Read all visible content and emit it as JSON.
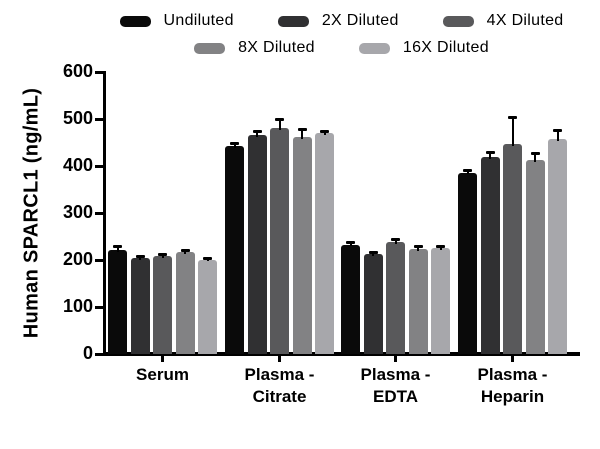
{
  "figure": {
    "ylabel": "Human SPARCL1 (ng/mL)"
  },
  "chart_data": {
    "type": "bar",
    "title": "",
    "xlabel": "",
    "ylabel": "Human SPARCL1 (ng/mL)",
    "ylim": [
      0,
      600
    ],
    "ytick_step": 100,
    "yticks": [
      0,
      100,
      200,
      300,
      400,
      500,
      600
    ],
    "grid": false,
    "legend_position": "top-center-two-rows",
    "legend_rows": [
      [
        0,
        1,
        2
      ],
      [
        3,
        4
      ]
    ],
    "error_bars": "upper, black, capped",
    "categories": [
      "Serum",
      "Plasma - Citrate",
      "Plasma - EDTA",
      "Plasma - Heparin"
    ],
    "categories_display": [
      [
        "Serum"
      ],
      [
        "Plasma -",
        "Citrate"
      ],
      [
        "Plasma -",
        "EDTA"
      ],
      [
        "Plasma -",
        "Heparin"
      ]
    ],
    "series": [
      {
        "name": "Undiluted",
        "color": "#0a0a0a",
        "values": [
          222,
          442,
          233,
          386
        ],
        "errors": [
          8,
          6,
          5,
          5
        ]
      },
      {
        "name": "2X Diluted",
        "color": "#303032",
        "values": [
          204,
          466,
          213,
          419
        ],
        "errors": [
          4,
          9,
          4,
          10
        ]
      },
      {
        "name": "4X Diluted",
        "color": "#59595b",
        "values": [
          209,
          480,
          238,
          447
        ],
        "errors": [
          4,
          21,
          7,
          57
        ]
      },
      {
        "name": "8X Diluted",
        "color": "#828284",
        "values": [
          217,
          462,
          224,
          412
        ],
        "errors": [
          5,
          17,
          5,
          15
        ]
      },
      {
        "name": "16X Diluted",
        "color": "#a7a7ab",
        "values": [
          201,
          470,
          225,
          458
        ],
        "errors": [
          4,
          5,
          5,
          18
        ]
      }
    ]
  }
}
